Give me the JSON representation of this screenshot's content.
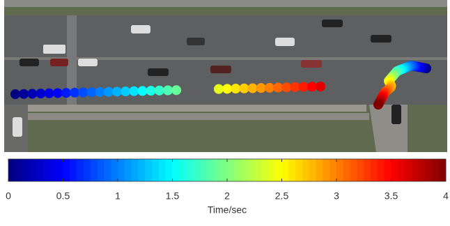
{
  "chart_data": {
    "type": "scatter",
    "colormap": "jet",
    "clim": [
      0,
      4
    ],
    "cticks": [
      0,
      0.5,
      1,
      1.5,
      2,
      2.5,
      3,
      3.5,
      4
    ],
    "colorbar_label": "Time/sec",
    "series": [
      {
        "values": [
          0,
          0.1,
          0.2,
          0.3,
          0.4,
          0.5,
          0.6,
          0.7,
          0.8,
          0.9,
          1,
          1.1,
          1.2,
          1.3,
          1.4,
          1.5,
          1.6,
          1.7,
          1.8,
          1.9,
          2.4,
          2.5,
          2.6,
          2.7,
          2.8,
          2.9,
          3,
          3.1,
          3.2,
          3.3,
          3.4,
          3.5,
          3.6
        ]
      },
      {
        "values": [
          0,
          0.1,
          0.2,
          0.3,
          0.4,
          0.5,
          0.6,
          0.7,
          0.8,
          0.9,
          1,
          1.1,
          1.2,
          1.3,
          1.4,
          1.5,
          1.6,
          1.7,
          1.8,
          1.9,
          2,
          2.1,
          2.2,
          2.3,
          2.4,
          2.5,
          2.6,
          2.7,
          2.8,
          2.9,
          3,
          3.1,
          3.2,
          3.3,
          3.4,
          3.5,
          3.6,
          3.7,
          3.8,
          3.9,
          4
        ]
      }
    ]
  }
}
